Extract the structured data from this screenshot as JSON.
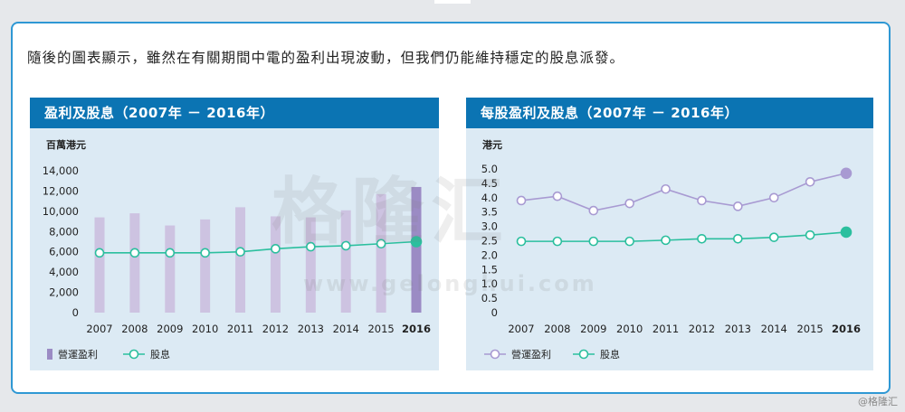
{
  "headline": "隨後的圖表顯示，雖然在有關期間中電的盈利出現波動，但我們仍能維持穩定的股息派發。",
  "watermark": "格隆汇",
  "watermark_url": "www.gelonghui.com",
  "corner_tag": "@格隆汇",
  "colors": {
    "bar": "#cdc3e1",
    "bar_last": "#9b8bc4",
    "dividend": "#2bbf9e",
    "eps": "#a89ad2",
    "title_bg": "#0b74b3"
  },
  "chart_data": [
    {
      "type": "bar",
      "title": "盈利及股息（2007年 － 2016年）",
      "ylabel": "百萬港元",
      "categories": [
        "2007",
        "2008",
        "2009",
        "2010",
        "2011",
        "2012",
        "2013",
        "2014",
        "2015",
        "2016"
      ],
      "ylim": [
        0,
        14000
      ],
      "yticks": [
        "14,000",
        "12,000",
        "10,000",
        "8,000",
        "6,000",
        "4,000",
        "2,000",
        "0"
      ],
      "ytick_values": [
        14000,
        12000,
        10000,
        8000,
        6000,
        4000,
        2000,
        0
      ],
      "series": [
        {
          "name": "營運盈利",
          "type": "bar",
          "values": [
            9400,
            9800,
            8600,
            9200,
            10400,
            9500,
            9400,
            10100,
            11700,
            12400
          ]
        },
        {
          "name": "股息",
          "type": "line",
          "values": [
            5900,
            5900,
            5900,
            5900,
            6000,
            6300,
            6500,
            6600,
            6800,
            7000
          ]
        }
      ],
      "legend": "bottom-left"
    },
    {
      "type": "line",
      "title": "每股盈利及股息（2007年 － 2016年）",
      "ylabel": "港元",
      "categories": [
        "2007",
        "2008",
        "2009",
        "2010",
        "2011",
        "2012",
        "2013",
        "2014",
        "2015",
        "2016"
      ],
      "ylim": [
        0,
        5.0
      ],
      "yticks": [
        "5.0",
        "4.5",
        "4.0",
        "3.5",
        "3.0",
        "2.5",
        "2.0",
        "1.5",
        "1.0",
        "0.5",
        "0"
      ],
      "ytick_values": [
        5.0,
        4.5,
        4.0,
        3.5,
        3.0,
        2.5,
        2.0,
        1.5,
        1.0,
        0.5,
        0
      ],
      "series": [
        {
          "name": "營運盈利",
          "values": [
            3.9,
            4.05,
            3.55,
            3.8,
            4.3,
            3.9,
            3.7,
            4.0,
            4.55,
            4.85
          ]
        },
        {
          "name": "股息",
          "values": [
            2.48,
            2.48,
            2.48,
            2.48,
            2.52,
            2.57,
            2.57,
            2.62,
            2.7,
            2.8
          ]
        }
      ],
      "legend": "bottom-left"
    }
  ]
}
